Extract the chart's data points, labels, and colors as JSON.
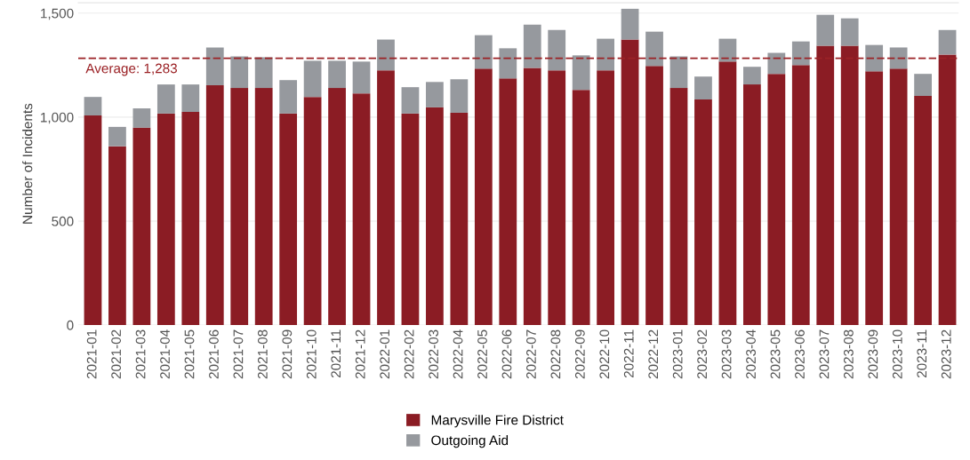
{
  "chart_data": {
    "type": "bar",
    "stacked": true,
    "ylabel": "Number of Incidents",
    "categories": [
      "2021-01",
      "2021-02",
      "2021-03",
      "2021-04",
      "2021-05",
      "2021-06",
      "2021-07",
      "2021-08",
      "2021-09",
      "2021-10",
      "2021-11",
      "2021-12",
      "2022-01",
      "2022-02",
      "2022-03",
      "2022-04",
      "2022-05",
      "2022-06",
      "2022-07",
      "2022-08",
      "2022-09",
      "2022-10",
      "2022-11",
      "2022-12",
      "2023-01",
      "2023-02",
      "2023-03",
      "2023-04",
      "2023-05",
      "2023-06",
      "2023-07",
      "2023-08",
      "2023-09",
      "2023-10",
      "2023-11",
      "2023-12"
    ],
    "series": [
      {
        "name": "Marysville Fire District",
        "color": "#8b1c24",
        "values": [
          1008,
          860,
          949,
          1017,
          1025,
          1153,
          1140,
          1140,
          1017,
          1097,
          1140,
          1114,
          1225,
          1017,
          1047,
          1021,
          1233,
          1186,
          1237,
          1225,
          1131,
          1225,
          1373,
          1246,
          1140,
          1085,
          1267,
          1157,
          1208,
          1250,
          1343,
          1343,
          1220,
          1233,
          1102,
          1301
        ]
      },
      {
        "name": "Outgoing Aid",
        "color": "#96999e",
        "values": [
          89,
          93,
          93,
          140,
          132,
          182,
          152,
          148,
          161,
          174,
          131,
          153,
          148,
          127,
          122,
          161,
          161,
          145,
          208,
          194,
          166,
          152,
          148,
          165,
          152,
          110,
          110,
          85,
          101,
          114,
          149,
          132,
          127,
          102,
          106,
          118
        ]
      }
    ],
    "ylim": [
      0,
      1550
    ],
    "yticks": [
      0,
      {
        "value": 500,
        "label": "500"
      },
      {
        "value": 1000,
        "label": "1,000"
      },
      {
        "value": 1500,
        "label": "1,500"
      }
    ],
    "grid": "y",
    "legend": "bottom",
    "ref_lines": [
      {
        "axis": "y",
        "value": 1283,
        "label": "Average: 1,283",
        "color": "#9b2226",
        "line_style": "dashed"
      }
    ]
  }
}
